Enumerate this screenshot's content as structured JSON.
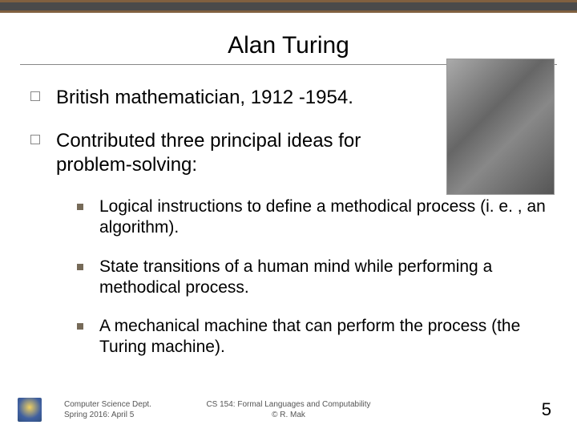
{
  "colors": {
    "bar_border": "#806040",
    "bar_fill": "#4a4a4a",
    "title_underline": "#888888",
    "open_bullet_border": "#888888",
    "filled_bullet": "#766a58",
    "text": "#000000",
    "footer_text": "#555555"
  },
  "title": "Alan Turing",
  "main": [
    {
      "text": "British mathematician, 1912 -1954."
    },
    {
      "text": "Contributed three principal ideas for problem-solving:"
    }
  ],
  "sub": [
    {
      "text": "Logical instructions to define a methodical process (i. e. , an algorithm)."
    },
    {
      "text": "State transitions of a human mind while performing a methodical process."
    },
    {
      "text": "A mechanical machine that can perform the process (the Turing machine)."
    }
  ],
  "footer": {
    "left_line1": "Computer Science Dept.",
    "left_line2": "Spring 2016: April 5",
    "center_line1": "CS 154: Formal Languages and Computability",
    "center_line2": "© R. Mak",
    "page_number": "5"
  }
}
